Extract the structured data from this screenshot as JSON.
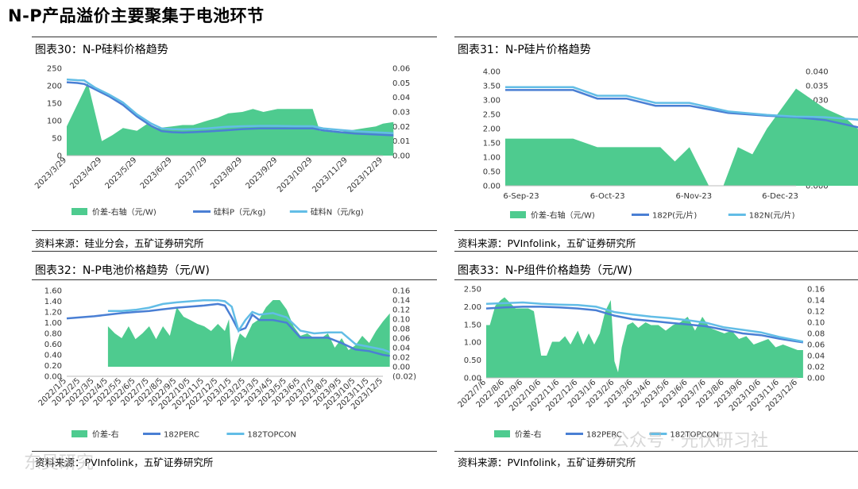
{
  "title": "N-P产品溢价主要聚集于电池环节",
  "watermarks": {
    "left": "东吴研究",
    "right": "公众号 · 光伏研习社"
  },
  "colors": {
    "area": "#4ecb8f",
    "line_dark": "#4a7fd4",
    "line_light": "#62bde6"
  },
  "charts": [
    {
      "title": "图表30：N-P硅料价格趋势",
      "source": "资料来源：硅业分会，五矿证券研究所",
      "chart_data": {
        "type": "area+line",
        "x_ticks": [
          "2023/3/29",
          "2023/4/29",
          "2023/5/29",
          "2023/6/29",
          "2023/7/29",
          "2023/8/29",
          "2023/9/29",
          "2023/10/29",
          "2023/11/29",
          "2023/12/29"
        ],
        "left_axis": {
          "min": 0,
          "max": 250,
          "ticks": [
            "0",
            "50",
            "100",
            "150",
            "200",
            "250"
          ]
        },
        "right_axis": {
          "min": 0,
          "max": 0.06,
          "ticks": [
            "0.00",
            "0.01",
            "0.02",
            "0.03",
            "0.04",
            "0.05",
            "0.06"
          ]
        },
        "legend": [
          "价差-右轴（元/W)",
          "硅料P（元/kg)",
          "硅料N（元/kg)"
        ],
        "series": [
          {
            "name": "价差-右轴（元/W)",
            "kind": "area",
            "axis": "right",
            "x": [
              0,
              0.2,
              0.6,
              1.0,
              1.3,
              1.6,
              2.0,
              2.3,
              2.6,
              3.0,
              3.3,
              3.6,
              4.0,
              4.3,
              4.6,
              5.0,
              5.3,
              5.6,
              6.0,
              6.5,
              7.0,
              7.2,
              7.6,
              8.0,
              8.5,
              8.8,
              9.0,
              9.3
            ],
            "y": [
              0.02,
              0.03,
              0.05,
              0.01,
              0.014,
              0.019,
              0.017,
              0.022,
              0.019,
              0.02,
              0.021,
              0.021,
              0.024,
              0.026,
              0.029,
              0.03,
              0.032,
              0.03,
              0.032,
              0.032,
              0.032,
              0.017,
              0.016,
              0.017,
              0.019,
              0.02,
              0.022,
              0.023
            ]
          },
          {
            "name": "硅料P（元/kg)",
            "kind": "line",
            "axis": "left",
            "x": [
              0,
              0.3,
              0.5,
              0.8,
              1.2,
              1.6,
              2.0,
              2.4,
              2.7,
              3.0,
              3.3,
              3.6,
              4.0,
              4.5,
              5.0,
              5.5,
              6.0,
              6.5,
              7.0,
              7.3,
              7.7,
              8.2,
              8.7,
              9.3
            ],
            "y": [
              210,
              208,
              205,
              190,
              170,
              145,
              112,
              85,
              70,
              67,
              66,
              67,
              69,
              72,
              76,
              78,
              78,
              78,
              78,
              72,
              68,
              63,
              61,
              58
            ]
          },
          {
            "name": "硅料N（元/kg)",
            "kind": "line",
            "axis": "left",
            "x": [
              0,
              0.3,
              0.5,
              0.8,
              1.2,
              1.6,
              2.0,
              2.4,
              2.7,
              3.0,
              3.3,
              3.6,
              4.0,
              4.5,
              5.0,
              5.5,
              6.0,
              6.5,
              7.0,
              7.3,
              7.7,
              8.2,
              8.7,
              9.3
            ],
            "y": [
              218,
              216,
              215,
              195,
              175,
              152,
              118,
              92,
              78,
              76,
              75,
              76,
              78,
              82,
              84,
              85,
              85,
              84,
              84,
              78,
              74,
              70,
              67,
              64
            ]
          }
        ]
      }
    },
    {
      "title": "图表31：N-P硅片价格趋势",
      "source": "资料来源：PVInfolink，五矿证券研究所",
      "chart_data": {
        "type": "area+line",
        "x_ticks": [
          "6-Sep-23",
          "6-Oct-23",
          "6-Nov-23",
          "6-Dec-23"
        ],
        "left_axis": {
          "min": 0,
          "max": 4,
          "ticks": [
            "0.00",
            "0.50",
            "1.00",
            "1.50",
            "2.00",
            "2.50",
            "3.00",
            "3.50",
            "4.00"
          ]
        },
        "right_axis": {
          "min": 0,
          "max": 0.04,
          "ticks": [
            "0.000",
            "0.005",
            "0.010",
            "0.015",
            "0.020",
            "0.025",
            "0.030",
            "0.035",
            "0.040"
          ]
        },
        "legend": [
          "价差-右轴（元/W)",
          "182P(元/片)",
          "182N(元/片)"
        ],
        "series": [
          {
            "name": "价差-右轴（元/W)",
            "kind": "area",
            "axis": "right",
            "x": [
              0,
              0.4,
              0.7,
              0.95,
              1.2,
              1.45,
              1.6,
              1.75,
              1.9,
              2.1,
              2.25,
              2.4,
              2.55,
              2.7,
              3.0,
              3.3,
              3.5,
              3.7,
              3.85,
              3.95
            ],
            "y": [
              0.0165,
              0.0165,
              0.0165,
              0.0135,
              0.0135,
              0.0135,
              0.0135,
              0.0085,
              0.0135,
              0.0,
              0.0,
              0.0135,
              0.011,
              0.02,
              0.034,
              0.027,
              0.024,
              0.018,
              0.0135,
              0.0135
            ]
          },
          {
            "name": "182P(元/片)",
            "kind": "line",
            "axis": "left",
            "x": [
              0,
              0.35,
              0.7,
              0.95,
              1.25,
              1.55,
              1.9,
              2.3,
              2.7,
              3.0,
              3.3,
              3.7,
              3.95
            ],
            "y": [
              3.35,
              3.35,
              3.35,
              3.05,
              3.05,
              2.8,
              2.8,
              2.55,
              2.45,
              2.4,
              2.3,
              2.0,
              2.0
            ]
          },
          {
            "name": "182N(元/片)",
            "kind": "line",
            "axis": "left",
            "x": [
              0,
              0.35,
              0.7,
              0.95,
              1.25,
              1.55,
              1.9,
              2.3,
              2.7,
              3.0,
              3.3,
              3.7,
              3.95
            ],
            "y": [
              3.45,
              3.45,
              3.45,
              3.15,
              3.15,
              2.9,
              2.9,
              2.6,
              2.48,
              2.42,
              2.4,
              2.3,
              2.1
            ]
          }
        ]
      }
    },
    {
      "title": "图表32：N-P电池价格趋势（元/W)",
      "source": "资料来源：PVInfolink，五矿证券研究所",
      "chart_data": {
        "type": "area+line",
        "x_ticks": [
          "2022/1/5",
          "2022/2/5",
          "2022/3/5",
          "2022/4/5",
          "2022/5/5",
          "2022/6/5",
          "2022/7/5",
          "2022/8/5",
          "2022/9/5",
          "2022/10/5",
          "2022/11/5",
          "2022/12/5",
          "2023/1/5",
          "2023/2/5",
          "2023/3/5",
          "2023/4/5",
          "2023/5/5",
          "2023/6/5",
          "2023/7/5",
          "2023/8/5",
          "2023/9/5",
          "2023/10/5",
          "2023/11/5",
          "2023/12/5"
        ],
        "left_axis": {
          "min": 0,
          "max": 1.6,
          "ticks": [
            "0.00",
            "0.20",
            "0.40",
            "0.60",
            "0.80",
            "1.00",
            "1.20",
            "1.40",
            "1.60"
          ]
        },
        "right_axis": {
          "min": -0.02,
          "max": 0.16,
          "ticks": [
            "(0.02)",
            "0.00",
            "0.02",
            "0.04",
            "0.06",
            "0.08",
            "0.10",
            "0.12",
            "0.14",
            "0.16"
          ]
        },
        "legend": [
          "价差-右",
          "182PERC",
          "182TOPCON"
        ],
        "series": [
          {
            "name": "价差-右",
            "kind": "area",
            "axis": "right",
            "x": [
              3,
              3.5,
              4,
              4.5,
              5,
              5.5,
              6,
              6.5,
              7,
              7.5,
              8,
              8.5,
              9,
              9.5,
              10,
              10.5,
              11,
              11.5,
              11.8,
              12,
              12.3,
              12.6,
              13,
              13.5,
              14,
              14.5,
              15,
              15.5,
              16,
              16.5,
              17,
              17.5,
              18,
              18.5,
              19,
              19.5,
              20,
              20.5,
              21,
              21.5,
              22,
              22.5,
              23,
              23.5
            ],
            "y": [
              0.085,
              0.07,
              0.06,
              0.085,
              0.058,
              0.07,
              0.085,
              0.058,
              0.085,
              0.065,
              0.125,
              0.105,
              0.098,
              0.09,
              0.085,
              0.075,
              0.09,
              0.075,
              0.1,
              0.01,
              0.045,
              0.07,
              0.06,
              0.09,
              0.1,
              0.125,
              0.14,
              0.14,
              0.12,
              0.085,
              0.065,
              0.07,
              0.06,
              0.06,
              0.07,
              0.04,
              0.06,
              0.035,
              0.045,
              0.065,
              0.05,
              0.075,
              0.095,
              0.112
            ]
          },
          {
            "name": "182PERC",
            "kind": "line",
            "axis": "left",
            "x": [
              0,
              1,
              2,
              3,
              4,
              5,
              6,
              7,
              8,
              9,
              10,
              11,
              11.5,
              12,
              12.5,
              13,
              13.5,
              14,
              15,
              16,
              17,
              18,
              19,
              20,
              21,
              22,
              23,
              23.5
            ],
            "y": [
              1.08,
              1.1,
              1.12,
              1.15,
              1.18,
              1.2,
              1.22,
              1.25,
              1.28,
              1.3,
              1.32,
              1.35,
              1.32,
              1.1,
              0.85,
              0.9,
              1.15,
              1.05,
              1.05,
              1.0,
              0.72,
              0.72,
              0.72,
              0.62,
              0.5,
              0.47,
              0.4,
              0.38
            ]
          },
          {
            "name": "182TOPCON",
            "kind": "line",
            "axis": "left",
            "x": [
              3,
              4,
              5,
              6,
              7,
              8,
              9,
              10,
              11,
              11.5,
              12,
              12.5,
              13,
              13.5,
              14,
              15,
              16,
              17,
              18,
              19,
              20,
              21,
              22,
              23,
              23.5
            ],
            "y": [
              1.22,
              1.22,
              1.24,
              1.28,
              1.35,
              1.38,
              1.4,
              1.42,
              1.42,
              1.4,
              1.3,
              0.85,
              1.05,
              1.2,
              1.15,
              1.18,
              1.1,
              0.85,
              0.8,
              0.82,
              0.82,
              0.6,
              0.55,
              0.5,
              0.45
            ]
          }
        ]
      }
    },
    {
      "title": "图表33：N-P组件价格趋势（元/W)",
      "source": "资料来源：PVInfolink，五矿证券研究所",
      "chart_data": {
        "type": "area+line",
        "x_ticks": [
          "2022/7/6",
          "2022/8/6",
          "2022/9/6",
          "2022/10/6",
          "2022/11/6",
          "2022/12/6",
          "2023/1/6",
          "2023/2/6",
          "2023/3/6",
          "2023/4/6",
          "2023/5/6",
          "2023/6/6",
          "2023/7/6",
          "2023/8/6",
          "2023/9/6",
          "2023/10/6",
          "2023/11/6",
          "2023/12/6"
        ],
        "left_axis": {
          "min": 0,
          "max": 2.5,
          "ticks": [
            "0.00",
            "0.50",
            "1.00",
            "1.50",
            "2.00",
            "2.50"
          ]
        },
        "right_axis": {
          "min": 0,
          "max": 0.16,
          "ticks": [
            "0.00",
            "0.02",
            "0.04",
            "0.06",
            "0.08",
            "0.10",
            "0.12",
            "0.14",
            "0.16"
          ]
        },
        "legend": [
          "价差-右",
          "182PERC",
          "182TOPCON"
        ],
        "series": [
          {
            "name": "价差-右",
            "kind": "area",
            "axis": "right",
            "x": [
              0,
              0.2,
              0.5,
              0.8,
              1.0,
              1.3,
              1.6,
              2.0,
              2.3,
              2.6,
              3.0,
              3.3,
              3.6,
              4.0,
              4.3,
              4.6,
              5.0,
              5.3,
              5.6,
              5.9,
              6.2,
              6.5,
              6.8,
              7.0,
              7.2,
              7.4,
              7.7,
              8.0,
              8.3,
              8.7,
              9.0,
              9.4,
              9.8,
              10.2,
              10.6,
              11.0,
              11.4,
              11.8,
              12.2,
              12.6,
              13.0,
              13.4,
              13.8,
              14.2,
              14.6,
              15.0,
              15.4,
              15.8,
              16.2,
              16.6,
              17.0,
              17.3
            ],
            "y": [
              0.095,
              0.095,
              0.13,
              0.14,
              0.145,
              0.135,
              0.125,
              0.125,
              0.125,
              0.12,
              0.04,
              0.04,
              0.065,
              0.065,
              0.075,
              0.06,
              0.085,
              0.06,
              0.08,
              0.06,
              0.08,
              0.12,
              0.14,
              0.03,
              0.01,
              0.055,
              0.095,
              0.1,
              0.09,
              0.1,
              0.095,
              0.095,
              0.085,
              0.095,
              0.1,
              0.11,
              0.085,
              0.11,
              0.09,
              0.085,
              0.08,
              0.085,
              0.07,
              0.075,
              0.06,
              0.065,
              0.07,
              0.055,
              0.06,
              0.055,
              0.05,
              0.05
            ]
          },
          {
            "name": "182PERC",
            "kind": "line",
            "axis": "left",
            "x": [
              0,
              1,
              2,
              3,
              4,
              5,
              6,
              7,
              8,
              9,
              10,
              11,
              12,
              13,
              14,
              15,
              16,
              17,
              17.3
            ],
            "y": [
              1.95,
              1.98,
              2.0,
              2.0,
              1.98,
              1.95,
              1.9,
              1.75,
              1.65,
              1.6,
              1.55,
              1.5,
              1.45,
              1.35,
              1.25,
              1.2,
              1.1,
              1.02,
              1.0
            ]
          },
          {
            "name": "182TOPCON",
            "kind": "line",
            "axis": "left",
            "x": [
              0,
              1,
              2,
              3,
              4,
              5,
              6,
              7,
              8,
              9,
              10,
              11,
              12,
              13,
              14,
              15,
              16,
              17,
              17.3
            ],
            "y": [
              2.08,
              2.1,
              2.12,
              2.08,
              2.06,
              2.05,
              2.0,
              1.85,
              1.78,
              1.72,
              1.68,
              1.62,
              1.55,
              1.42,
              1.35,
              1.28,
              1.15,
              1.05,
              1.02
            ]
          }
        ]
      }
    }
  ]
}
